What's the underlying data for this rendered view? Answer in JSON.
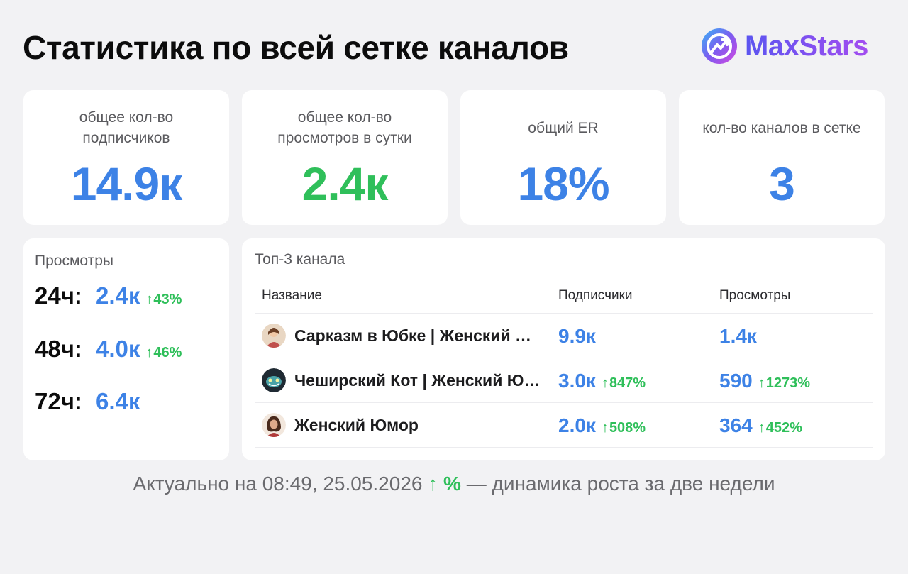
{
  "header": {
    "title": "Статистика по всей сетке каналов",
    "brand": "MaxStars",
    "brand_colors": [
      "#5b55f0",
      "#a34df0"
    ]
  },
  "stats": [
    {
      "label": "общее кол-во подписчиков",
      "value": "14.9к",
      "color": "blue"
    },
    {
      "label": "общее кол-во просмотров в сутки",
      "value": "2.4к",
      "color": "green"
    },
    {
      "label": "общий ER",
      "value": "18%",
      "color": "blue"
    },
    {
      "label": "кол-во каналов в сетке",
      "value": "3",
      "color": "blue"
    }
  ],
  "views": {
    "label": "Просмотры",
    "rows": [
      {
        "period": "24ч:",
        "value": "2.4к",
        "growth": "43%"
      },
      {
        "period": "48ч:",
        "value": "4.0к",
        "growth": "46%"
      },
      {
        "period": "72ч:",
        "value": "6.4к",
        "growth": ""
      }
    ]
  },
  "top": {
    "label": "Топ-3 канала",
    "columns": {
      "name": "Название",
      "subscribers": "Подписчики",
      "views": "Просмотры"
    },
    "rows": [
      {
        "name": "Сарказм в Юбке | Женский Юмор",
        "subscribers": "9.9к",
        "subscribers_growth": "",
        "views": "1.4к",
        "views_growth": "",
        "avatar": "woman-avatar-icon"
      },
      {
        "name": "Чеширский Кот | Женский Юмор",
        "subscribers": "3.0к",
        "subscribers_growth": "847%",
        "views": "590",
        "views_growth": "1273%",
        "avatar": "cat-avatar-icon"
      },
      {
        "name": "Женский Юмор",
        "subscribers": "2.0к",
        "subscribers_growth": "508%",
        "views": "364",
        "views_growth": "452%",
        "avatar": "woman-portrait-avatar-icon"
      }
    ]
  },
  "footer": {
    "prefix": "Актуально на 08:49, 25.05.2026",
    "accent": "↑ %",
    "suffix": "— динамика роста за две недели"
  },
  "arrow_glyph": "↑",
  "colors": {
    "blue": "#3d82e6",
    "green": "#2fbf5a"
  }
}
